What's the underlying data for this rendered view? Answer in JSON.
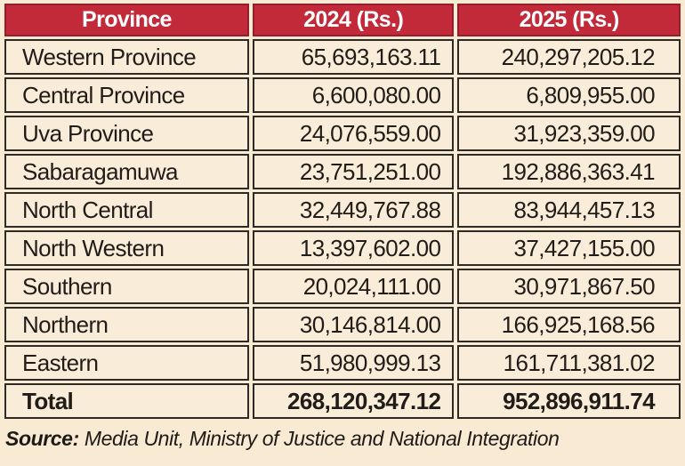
{
  "colors": {
    "page_background": "#f8ead3",
    "header_background": "#c22a3a",
    "header_border": "#951e2c",
    "header_text": "#ffffff",
    "cell_background": "#f9edda",
    "cell_border": "#2e2a25",
    "text": "#211c17"
  },
  "table": {
    "columns": [
      "Province",
      "2024 (Rs.)",
      "2025 (Rs.)"
    ],
    "rows": [
      {
        "province": "Western  Province",
        "y2024": "65,693,163.11",
        "y2025": "240,297,205.12"
      },
      {
        "province": "Central Province",
        "y2024": "6,600,080.00",
        "y2025": "6,809,955.00"
      },
      {
        "province": "Uva Province",
        "y2024": "24,076,559.00",
        "y2025": "31,923,359.00"
      },
      {
        "province": "Sabaragamuwa",
        "y2024": "23,751,251.00",
        "y2025": "192,886,363.41"
      },
      {
        "province": "North Central",
        "y2024": "32,449,767.88",
        "y2025": "83,944,457.13"
      },
      {
        "province": "North Western",
        "y2024": "13,397,602.00",
        "y2025": "37,427,155.00"
      },
      {
        "province": "Southern",
        "y2024": "20,024,111.00",
        "y2025": "30,971,867.50"
      },
      {
        "province": "Northern",
        "y2024": "30,146,814.00",
        "y2025": "166,925,168.56"
      },
      {
        "province": "Eastern",
        "y2024": "51,980,999.13",
        "y2025": "161,711,381.02"
      }
    ],
    "total": {
      "label": "Total",
      "y2024": "268,120,347.12",
      "y2025": "952,896,911.74"
    }
  },
  "source": {
    "label": "Source:",
    "text": " Media Unit, Ministry of Justice and National Integration"
  },
  "chart_data": {
    "type": "table",
    "title": "",
    "columns": [
      "Province",
      "2024 (Rs.)",
      "2025 (Rs.)"
    ],
    "rows": [
      [
        "Western Province",
        65693163.11,
        240297205.12
      ],
      [
        "Central Province",
        6600080.0,
        6809955.0
      ],
      [
        "Uva Province",
        24076559.0,
        31923359.0
      ],
      [
        "Sabaragamuwa",
        23751251.0,
        192886363.41
      ],
      [
        "North Central",
        32449767.88,
        83944457.13
      ],
      [
        "North Western",
        13397602.0,
        37427155.0
      ],
      [
        "Southern",
        20024111.0,
        30971867.5
      ],
      [
        "Northern",
        30146814.0,
        166925168.56
      ],
      [
        "Eastern",
        51980999.13,
        161711381.02
      ]
    ],
    "total": [
      "Total",
      268120347.12,
      952896911.74
    ],
    "source": "Media Unit, Ministry of Justice and National Integration"
  }
}
